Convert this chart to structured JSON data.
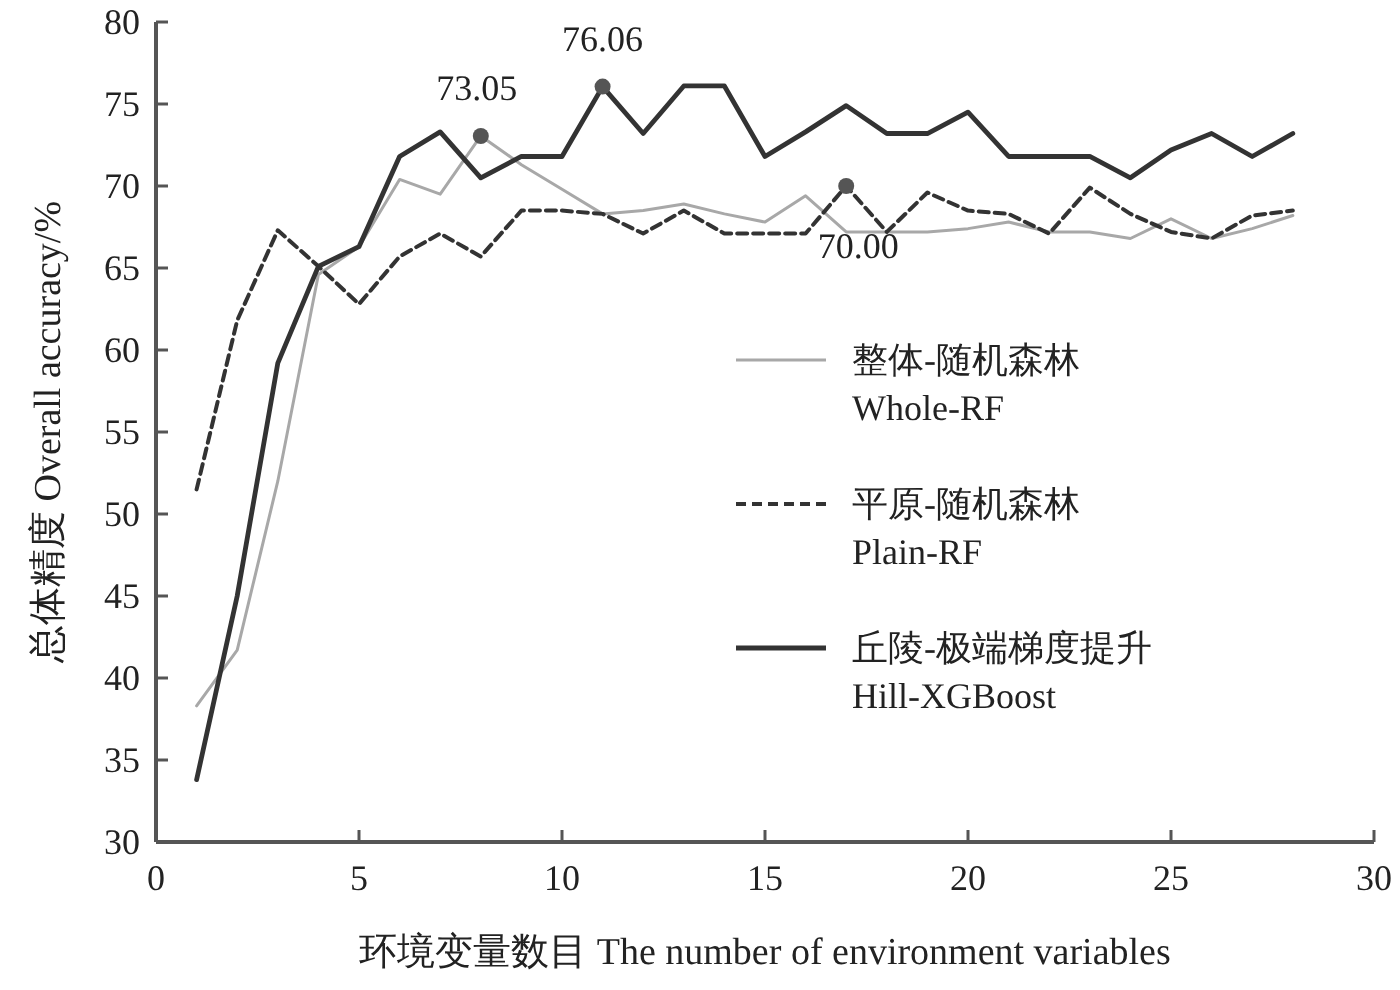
{
  "chart_data": {
    "type": "line",
    "xlabel": "环境变量数目 The number of environment variables",
    "ylabel": "总体精度 Overall accuracy/%",
    "x": [
      1,
      2,
      3,
      4,
      5,
      6,
      7,
      8,
      9,
      10,
      11,
      12,
      13,
      14,
      15,
      16,
      17,
      18,
      19,
      20,
      21,
      22,
      23,
      24,
      25,
      26,
      27,
      28
    ],
    "series": [
      {
        "name": "整体-随机森林\nWhole-RF",
        "color": "#a8a8a8",
        "line_style": "solid",
        "values": [
          38.3,
          41.7,
          52,
          64.6,
          66.3,
          70.4,
          69.5,
          73.05,
          71.3,
          69.8,
          68.3,
          68.5,
          68.9,
          68.3,
          67.8,
          69.4,
          67.2,
          67.2,
          67.2,
          67.4,
          67.8,
          67.2,
          67.2,
          66.8,
          68.0,
          66.8,
          67.4,
          68.2
        ]
      },
      {
        "name": "平原-随机森林\nPlain-RF",
        "color": "#333333",
        "line_style": "dashed",
        "values": [
          51.5,
          61.8,
          67.3,
          65.1,
          62.8,
          65.7,
          67.1,
          65.7,
          68.5,
          68.5,
          68.3,
          67.1,
          68.5,
          67.1,
          67.1,
          67.1,
          70.0,
          67.2,
          69.6,
          68.5,
          68.3,
          67.1,
          69.9,
          68.3,
          67.2,
          66.8,
          68.2,
          68.5
        ]
      },
      {
        "name": "丘陵-极端梯度提升\nHill-XGBoost",
        "color": "#333333",
        "line_style": "solid",
        "values": [
          33.8,
          45,
          59.2,
          65.1,
          66.3,
          71.8,
          73.3,
          70.5,
          71.8,
          71.8,
          76.06,
          73.2,
          76.1,
          76.1,
          71.8,
          73.3,
          74.9,
          73.2,
          73.2,
          74.5,
          71.8,
          71.8,
          71.8,
          70.5,
          72.2,
          73.2,
          71.8,
          73.2
        ]
      }
    ],
    "annotations": [
      {
        "text": "73.05",
        "x": 8,
        "y": 73.05
      },
      {
        "text": "76.06",
        "x": 11,
        "y": 76.06
      },
      {
        "text": "70.00",
        "x": 17,
        "y": 70.0
      }
    ],
    "xlim": [
      0,
      30
    ],
    "xticks": [
      0,
      5,
      10,
      15,
      20,
      25,
      30
    ],
    "ylim": [
      30,
      80
    ],
    "yticks": [
      30,
      35,
      40,
      45,
      50,
      55,
      60,
      65,
      70,
      75,
      80
    ],
    "grid": false,
    "legend": "right",
    "marker": "none"
  }
}
